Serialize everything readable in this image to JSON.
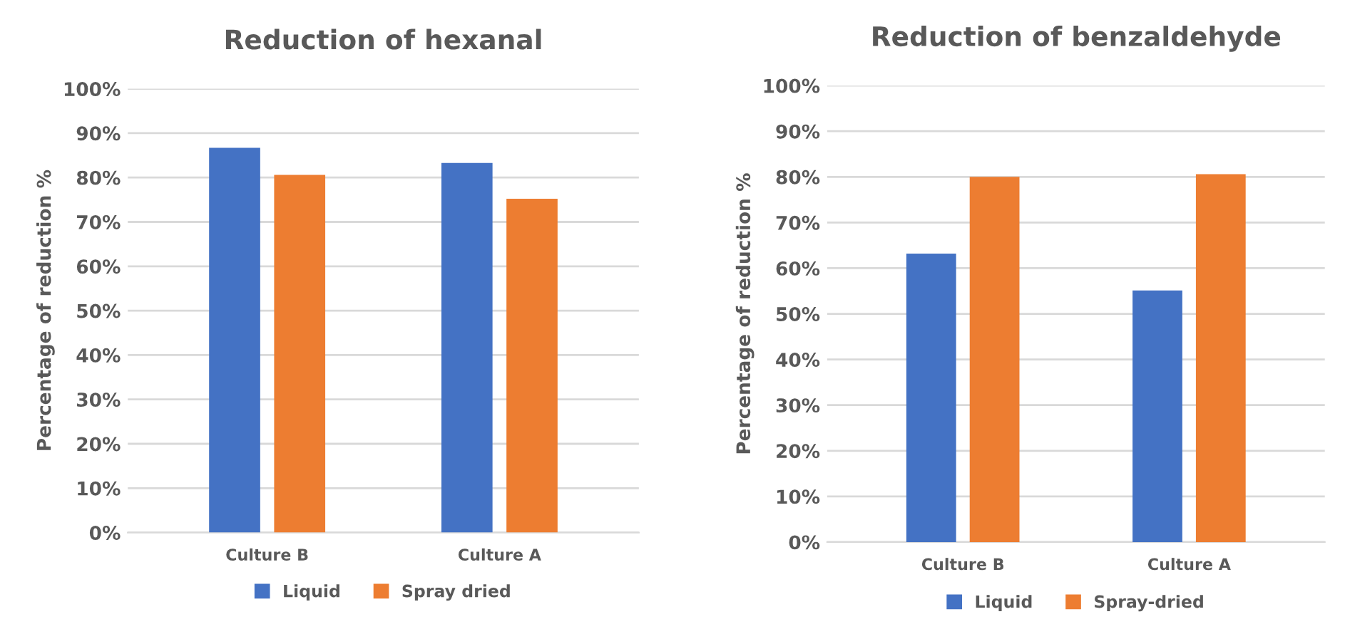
{
  "chart_data": [
    {
      "type": "bar",
      "title": "Reduction of hexanal",
      "ylabel": "Percentage of reduction %",
      "categories": [
        "Culture B",
        "Culture A"
      ],
      "series": [
        {
          "name": "Liquid",
          "color": "#4472c4",
          "values": [
            86.7,
            83.3
          ]
        },
        {
          "name": "Spray dried",
          "color": "#ed7d31",
          "values": [
            80.6,
            75.2
          ]
        }
      ],
      "ylim": [
        0,
        100
      ],
      "yticks": [
        {
          "value": 0,
          "label": "0%"
        },
        {
          "value": 10,
          "label": "10%"
        },
        {
          "value": 20,
          "label": "20%"
        },
        {
          "value": 30,
          "label": "30%"
        },
        {
          "value": 40,
          "label": "40%"
        },
        {
          "value": 50,
          "label": "50%"
        },
        {
          "value": 60,
          "label": "60%"
        },
        {
          "value": 70,
          "label": "70%"
        },
        {
          "value": 80,
          "label": "80%"
        },
        {
          "value": 90,
          "label": "90%"
        },
        {
          "value": 100,
          "label": "100%"
        }
      ],
      "grid": "y",
      "legend": "bottom"
    },
    {
      "type": "bar",
      "title": "Reduction of benzaldehyde",
      "ylabel": "Percentage of reduction %",
      "categories": [
        "Culture B",
        "Culture A"
      ],
      "series": [
        {
          "name": "Liquid",
          "color": "#4472c4",
          "values": [
            63.2,
            55.1
          ]
        },
        {
          "name": "Spray-dried",
          "color": "#ed7d31",
          "values": [
            80.0,
            80.6
          ]
        }
      ],
      "ylim": [
        0,
        100
      ],
      "yticks": [
        {
          "value": 0,
          "label": "0%"
        },
        {
          "value": 10,
          "label": "10%"
        },
        {
          "value": 20,
          "label": "20%"
        },
        {
          "value": 30,
          "label": "30%"
        },
        {
          "value": 40,
          "label": "40%"
        },
        {
          "value": 50,
          "label": "50%"
        },
        {
          "value": 60,
          "label": "60%"
        },
        {
          "value": 70,
          "label": "70%"
        },
        {
          "value": 80,
          "label": "80%"
        },
        {
          "value": 90,
          "label": "90%"
        },
        {
          "value": 100,
          "label": "100%"
        }
      ],
      "grid": "y",
      "legend": "bottom"
    }
  ]
}
